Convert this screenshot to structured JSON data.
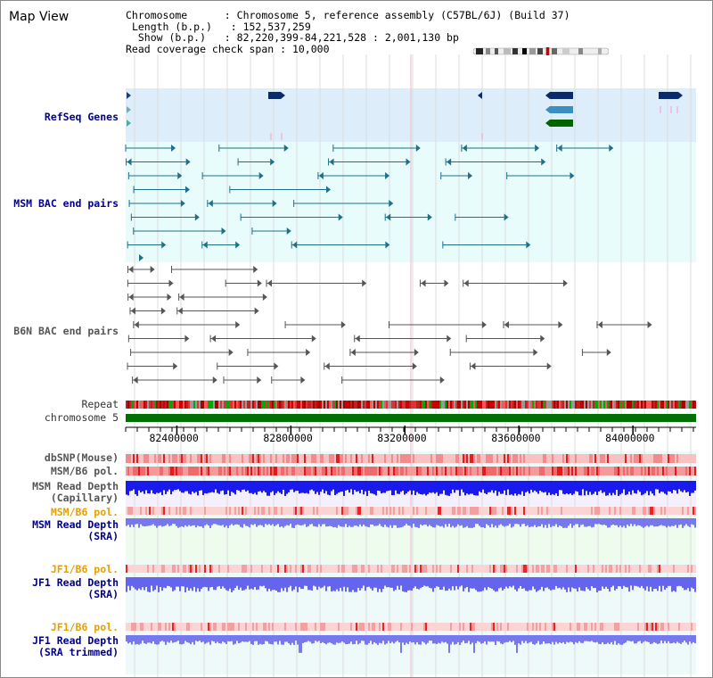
{
  "title": "Map View",
  "info": {
    "chromosome_label": "Chromosome",
    "chromosome_value": "Chromosome 5, reference assembly (C57BL/6J) (Build 37)",
    "length_label": "Length (b.p.)",
    "length_value": "152,537,259",
    "show_label": "Show (b.p.)",
    "show_value": "82,220,399-84,221,528 : 2,001,130 bp",
    "coverage_label": "Read coverage check span",
    "coverage_value": "10,000"
  },
  "tracks": {
    "refseq": "RefSeq Genes",
    "msm_bac": "MSM BAC end pairs",
    "b6n_bac": "B6N BAC end pairs",
    "repeat": "Repeat",
    "chromosome": "chromosome 5",
    "dbsnp": "dbSNP(Mouse)",
    "msm_b6_pol": "MSM/B6 pol.",
    "msm_depth_cap": "MSM Read Depth\n(Capillary)",
    "msm_b6_pol2": "MSM/B6 pol.",
    "msm_depth_sra": "MSM Read Depth\n(SRA)",
    "jf1_b6_pol": "JF1/B6 pol.",
    "jf1_depth_sra": "JF1 Read Depth\n(SRA)",
    "jf1_b6_pol2": "JF1/B6 pol.",
    "jf1_depth_trim": "JF1 Read Depth\n(SRA trimmed)"
  },
  "axis": {
    "ticks": [
      "82400000",
      "82800000",
      "83200000",
      "83600000",
      "84000000"
    ],
    "tick_values": [
      82400000,
      82800000,
      83200000,
      83600000,
      84000000
    ],
    "range": [
      82220399,
      84221528
    ]
  },
  "colors": {
    "refseq_bg": "#ddeefa",
    "msm_bg": "#e8fcfc",
    "gene_dark": "#0b2a6b",
    "gene_mid": "#3a8fc0",
    "gene_green": "#006400",
    "chrom_green": "#007000",
    "depth_blue": "#1a1aee",
    "depth_violet": "#7777ee"
  }
}
